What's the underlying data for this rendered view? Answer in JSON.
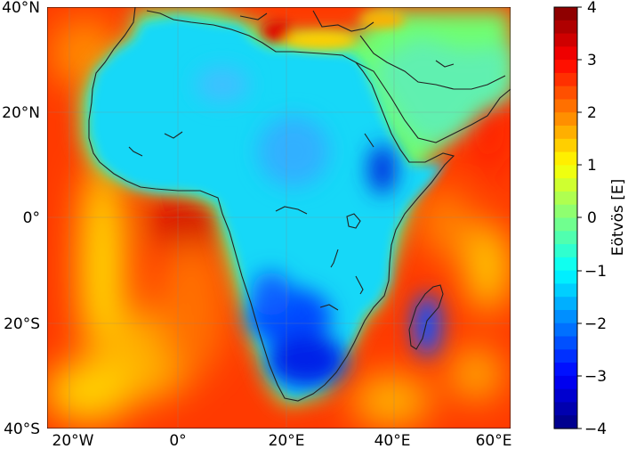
{
  "chart_data": {
    "type": "heatmap",
    "title": "",
    "xlabel": "",
    "ylabel": "",
    "x_ticks": [
      "20°W",
      "0°",
      "20°E",
      "40°E",
      "60°E"
    ],
    "y_ticks": [
      "40°N",
      "20°N",
      "0°",
      "20°S",
      "40°S"
    ],
    "colorbar": {
      "label": "Eötvös [E]",
      "ticks": [
        "4",
        "3",
        "2",
        "1",
        "0",
        "−1",
        "−2",
        "−3",
        "−4"
      ],
      "range": [
        -4,
        4
      ],
      "colormap": "jet",
      "levels": 32
    },
    "grid": true,
    "colors": [
      "#00007f",
      "#0000ff",
      "#007fff",
      "#00ffff",
      "#7fff7f",
      "#ffff00",
      "#ff7f00",
      "#ff0000",
      "#7f0000"
    ]
  }
}
